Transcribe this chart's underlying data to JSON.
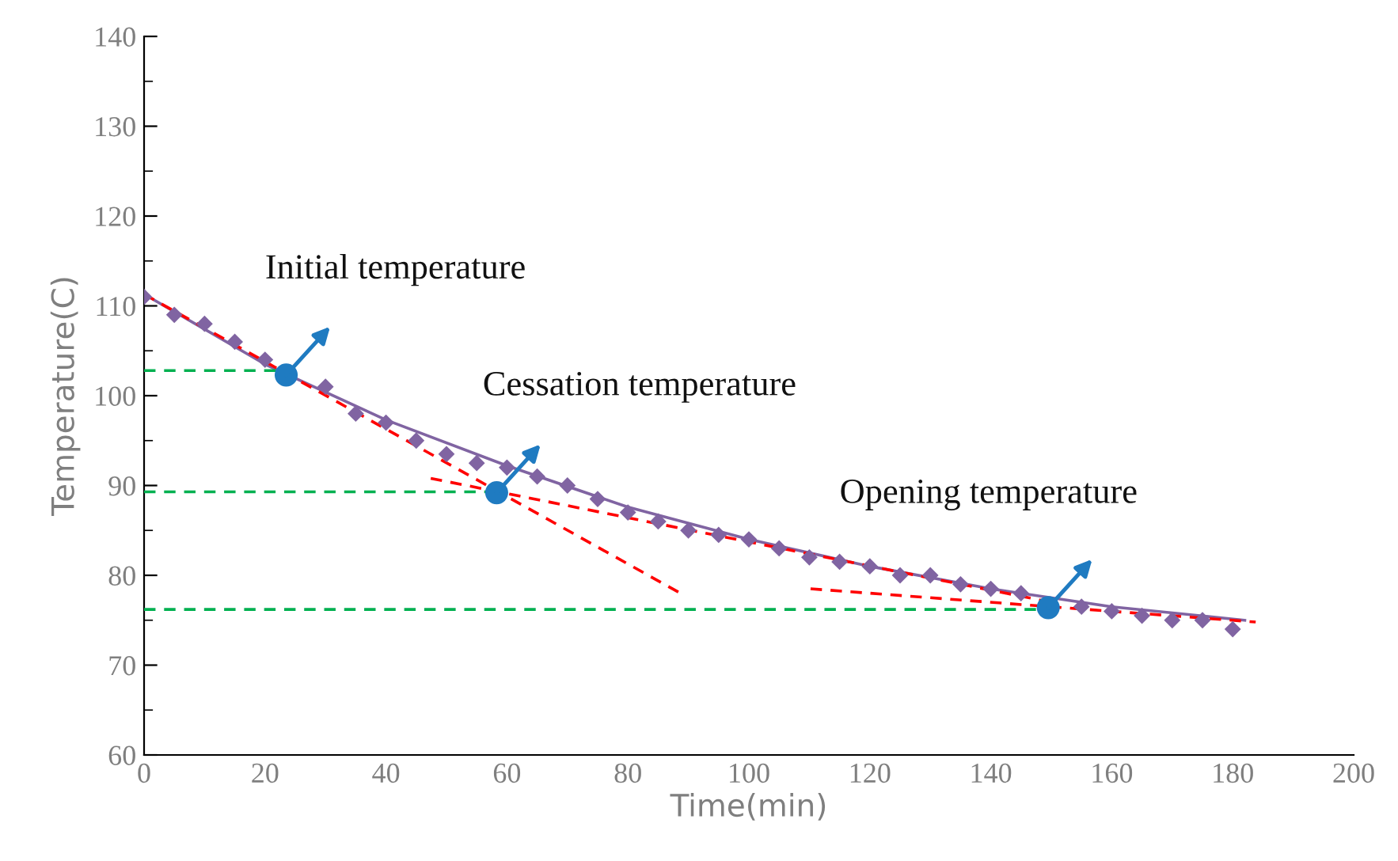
{
  "chart_data": {
    "type": "scatter",
    "xlabel": "Time(min)",
    "ylabel": "Temperature(C)",
    "xlim": [
      0,
      200
    ],
    "xticks": [
      0,
      20,
      40,
      60,
      80,
      100,
      120,
      140,
      160,
      180,
      200
    ],
    "ylim": [
      60,
      140
    ],
    "yticks": [
      60,
      70,
      80,
      90,
      100,
      110,
      120,
      130,
      140
    ],
    "grid": false,
    "legend": false,
    "x": [
      0,
      5,
      10,
      15,
      20,
      25,
      30,
      35,
      40,
      45,
      50,
      55,
      60,
      65,
      70,
      75,
      80,
      85,
      90,
      95,
      100,
      105,
      110,
      115,
      120,
      125,
      130,
      135,
      140,
      145,
      150,
      155,
      160,
      165,
      170,
      175,
      180
    ],
    "series": [
      {
        "color": "#8064a2",
        "marker": "diamond",
        "values": [
          111,
          109,
          108,
          106,
          104,
          null,
          101,
          98,
          97,
          95,
          93.5,
          92.5,
          92,
          91,
          90,
          88.5,
          87,
          86,
          85,
          84.5,
          84,
          83,
          82,
          81.5,
          81,
          80,
          80,
          79,
          78.5,
          78,
          null,
          76.5,
          76,
          75.5,
          75,
          75,
          74
        ]
      },
      {
        "type": "line",
        "color": "#8064a2",
        "line_style": "solid",
        "x": [
          0,
          20,
          40,
          60,
          80,
          100,
          120,
          140,
          160,
          182
        ],
        "values": [
          111.3,
          103.5,
          97.3,
          92.2,
          87.6,
          84,
          81,
          78.5,
          76.5,
          75
        ]
      },
      {
        "type": "line",
        "color": "#ff0000",
        "line_style": "dashed",
        "x": [
          0,
          88.7
        ],
        "values": [
          111.3,
          78
        ]
      },
      {
        "type": "line",
        "color": "#ff0000",
        "line_style": "dashed",
        "x": [
          47.4,
          150
        ],
        "values": [
          90.8,
          77
        ]
      },
      {
        "type": "line",
        "color": "#ff0000",
        "line_style": "dashed",
        "x": [
          110.2,
          183.8
        ],
        "values": [
          78.5,
          74.8
        ]
      },
      {
        "type": "line",
        "color": "#00b050",
        "line_style": "dashed",
        "x": [
          0,
          23.5
        ],
        "values": [
          102.8,
          102.8
        ]
      },
      {
        "type": "line",
        "color": "#00b050",
        "line_style": "dashed",
        "x": [
          0,
          58.3
        ],
        "values": [
          89.3,
          89.3
        ]
      },
      {
        "type": "line",
        "color": "#00b050",
        "line_style": "dashed",
        "x": [
          0,
          149.5
        ],
        "values": [
          76.2,
          76.2
        ]
      },
      {
        "type": "scatter",
        "color": "#1f7bc1",
        "marker": "circle",
        "x": [
          23.5,
          58.3,
          149.5
        ],
        "values": [
          102.3,
          89.2,
          76.4
        ]
      }
    ],
    "annotations": [
      "Initial temperature",
      "Cessation temperature",
      "Opening temperature"
    ]
  }
}
